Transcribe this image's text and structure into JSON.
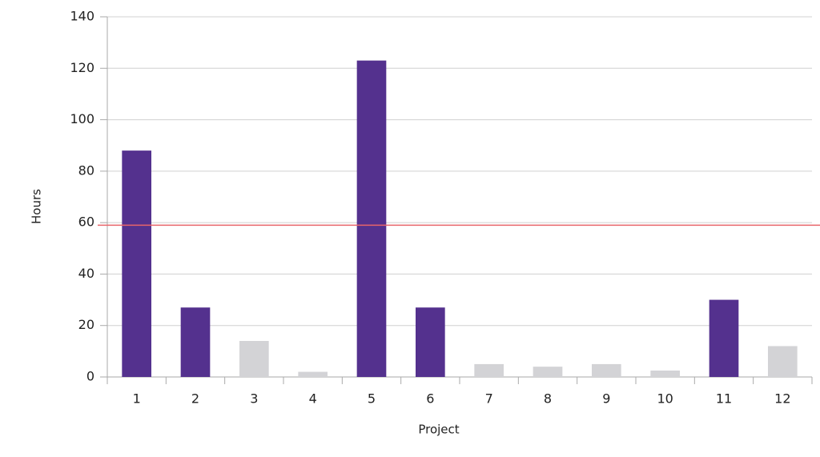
{
  "chart_data": {
    "type": "bar",
    "x_label": "Project",
    "y_label": "Hours",
    "categories": [
      "1",
      "2",
      "3",
      "4",
      "5",
      "6",
      "7",
      "8",
      "9",
      "10",
      "11",
      "12"
    ],
    "values": [
      88,
      27,
      14,
      2,
      123,
      27,
      5,
      4,
      5,
      2.5,
      30,
      12
    ],
    "colors": [
      "#54318e",
      "#54318e",
      "#d3d3d6",
      "#d3d3d6",
      "#54318e",
      "#54318e",
      "#d3d3d6",
      "#d3d3d6",
      "#d3d3d6",
      "#d3d3d6",
      "#54318e",
      "#d3d3d6"
    ],
    "ylim": [
      0,
      140
    ],
    "yticks": [
      0,
      20,
      40,
      60,
      80,
      100,
      120,
      140
    ],
    "grid": true,
    "reference_line": {
      "value": 59,
      "color": "#e8656a"
    }
  }
}
